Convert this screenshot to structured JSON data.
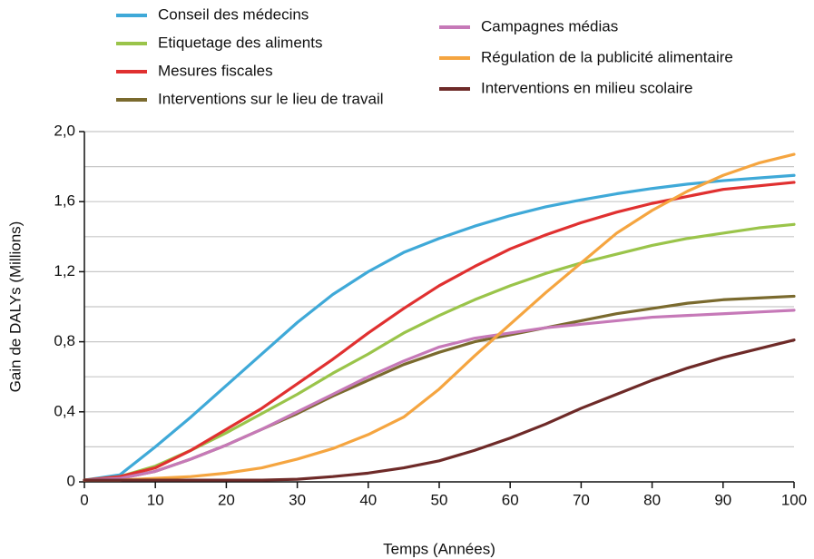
{
  "chart_data": {
    "type": "line",
    "xlabel": "Temps (Années)",
    "ylabel": "Gain de DALYs (Millions)",
    "x": [
      0,
      5,
      10,
      15,
      20,
      25,
      30,
      35,
      40,
      45,
      50,
      55,
      60,
      65,
      70,
      75,
      80,
      85,
      90,
      95,
      100
    ],
    "xlim": [
      0,
      100
    ],
    "xticks": [
      0,
      10,
      20,
      30,
      40,
      50,
      60,
      70,
      80,
      90,
      100
    ],
    "ylim": [
      0,
      2.0
    ],
    "yticks": [
      0,
      {
        "value": 0.4,
        "label": "0,4"
      },
      {
        "value": 0.8,
        "label": "0,8"
      },
      {
        "value": 1.2,
        "label": "1,2"
      },
      {
        "value": 1.6,
        "label": "1,6"
      },
      {
        "value": 2.0,
        "label": "2,0"
      }
    ],
    "ygrid": [
      0.2,
      0.4,
      0.6,
      0.8,
      1.0,
      1.2,
      1.4,
      1.6,
      1.8,
      2.0
    ],
    "series": [
      {
        "name": "Conseil des médecins",
        "color": "#3fa9d8",
        "values": [
          0.01,
          0.04,
          0.2,
          0.37,
          0.55,
          0.73,
          0.91,
          1.07,
          1.2,
          1.31,
          1.39,
          1.46,
          1.52,
          1.57,
          1.61,
          1.645,
          1.675,
          1.7,
          1.72,
          1.735,
          1.75
        ]
      },
      {
        "name": "Etiquetage des aliments",
        "color": "#9ac44a",
        "values": [
          0.01,
          0.03,
          0.09,
          0.18,
          0.28,
          0.39,
          0.5,
          0.62,
          0.73,
          0.85,
          0.95,
          1.04,
          1.12,
          1.19,
          1.25,
          1.3,
          1.35,
          1.39,
          1.42,
          1.45,
          1.47
        ]
      },
      {
        "name": "Mesures fiscales",
        "color": "#e03030",
        "values": [
          0.01,
          0.03,
          0.08,
          0.18,
          0.3,
          0.42,
          0.56,
          0.7,
          0.85,
          0.99,
          1.12,
          1.23,
          1.33,
          1.41,
          1.48,
          1.54,
          1.59,
          1.63,
          1.67,
          1.69,
          1.71
        ]
      },
      {
        "name": "Interventions sur le lieu de travail",
        "color": "#7a6a2e",
        "values": [
          0.01,
          0.02,
          0.06,
          0.13,
          0.21,
          0.3,
          0.39,
          0.49,
          0.58,
          0.67,
          0.74,
          0.8,
          0.84,
          0.88,
          0.92,
          0.96,
          0.99,
          1.02,
          1.04,
          1.05,
          1.06
        ]
      },
      {
        "name": "Campagnes médias",
        "color": "#c679b8",
        "values": [
          0.01,
          0.02,
          0.06,
          0.13,
          0.21,
          0.3,
          0.4,
          0.5,
          0.6,
          0.69,
          0.77,
          0.82,
          0.85,
          0.88,
          0.9,
          0.92,
          0.94,
          0.95,
          0.96,
          0.97,
          0.98
        ]
      },
      {
        "name": "Régulation de la publicité alimentaire",
        "color": "#f5a540",
        "values": [
          0.01,
          0.01,
          0.02,
          0.03,
          0.05,
          0.08,
          0.13,
          0.19,
          0.27,
          0.37,
          0.53,
          0.72,
          0.9,
          1.08,
          1.25,
          1.42,
          1.55,
          1.66,
          1.75,
          1.82,
          1.87
        ]
      },
      {
        "name": "Interventions en milieu scolaire",
        "color": "#6e2a28",
        "values": [
          0.01,
          0.01,
          0.01,
          0.01,
          0.01,
          0.01,
          0.015,
          0.03,
          0.05,
          0.08,
          0.12,
          0.18,
          0.25,
          0.33,
          0.42,
          0.5,
          0.58,
          0.65,
          0.71,
          0.76,
          0.81
        ]
      }
    ]
  }
}
